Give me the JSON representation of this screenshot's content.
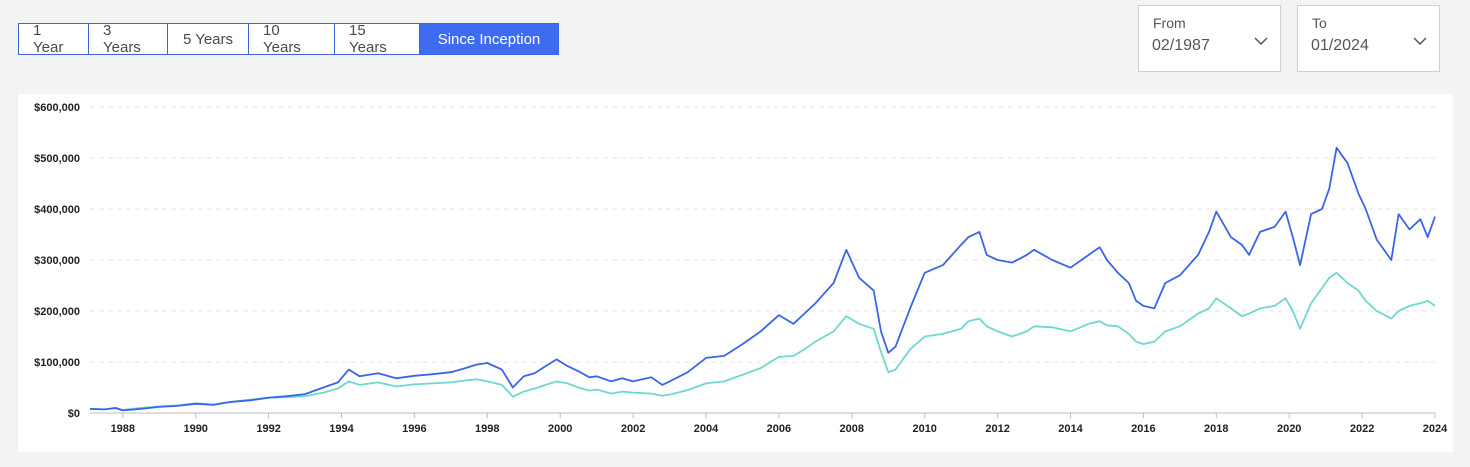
{
  "range_tabs": {
    "items": [
      "1 Year",
      "3 Years",
      "5 Years",
      "10 Years",
      "15 Years",
      "Since Inception"
    ],
    "active": "Since Inception"
  },
  "date_range": {
    "from_label": "From",
    "from_value": "02/1987",
    "to_label": "To",
    "to_value": "01/2024"
  },
  "colors": {
    "accent": "#3d6cf3",
    "series_1": "#3a66e6",
    "series_2": "#6ed8cf"
  },
  "chart_data": {
    "type": "line",
    "title": "",
    "xlabel": "",
    "ylabel": "",
    "xlim": [
      1987.1,
      2024.0
    ],
    "ylim": [
      0,
      600000
    ],
    "x_ticks": [
      1988,
      1990,
      1992,
      1994,
      1996,
      1998,
      2000,
      2002,
      2004,
      2006,
      2008,
      2010,
      2012,
      2014,
      2016,
      2018,
      2020,
      2022,
      2024
    ],
    "x_tick_labels": [
      "1988",
      "1990",
      "1992",
      "1994",
      "1996",
      "1998",
      "2000",
      "2002",
      "2004",
      "2006",
      "2008",
      "2010",
      "2012",
      "2014",
      "2016",
      "2018",
      "2020",
      "2022",
      "2024"
    ],
    "y_ticks": [
      0,
      100000,
      200000,
      300000,
      400000,
      500000,
      600000
    ],
    "y_tick_labels": [
      "$0",
      "$100,000",
      "$200,000",
      "$300,000",
      "$400,000",
      "$500,000",
      "$600,000"
    ],
    "grid": true,
    "legend": "none",
    "series": [
      {
        "x": [
          1987.1,
          1987.5,
          1987.8,
          1988.0,
          1988.5,
          1989.0,
          1989.5,
          1990.0,
          1990.5,
          1990.8,
          1991.0,
          1991.5,
          1992.0,
          1992.5,
          1993.0,
          1993.5,
          1993.9,
          1994.2,
          1994.5,
          1995.0,
          1995.5,
          1996.0,
          1996.5,
          1997.0,
          1997.4,
          1997.7,
          1998.0,
          1998.4,
          1998.7,
          1999.0,
          1999.3,
          1999.6,
          1999.9,
          2000.2,
          2000.5,
          2000.8,
          2001.0,
          2001.4,
          2001.7,
          2002.0,
          2002.5,
          2002.8,
          2003.0,
          2003.5,
          2004.0,
          2004.5,
          2005.0,
          2005.5,
          2006.0,
          2006.4,
          2006.7,
          2007.0,
          2007.5,
          2007.85,
          2008.2,
          2008.6,
          2008.8,
          2009.0,
          2009.2,
          2009.6,
          2010.0,
          2010.5,
          2011.0,
          2011.2,
          2011.5,
          2011.7,
          2012.0,
          2012.4,
          2012.8,
          2013.0,
          2013.5,
          2014.0,
          2014.5,
          2014.8,
          2015.0,
          2015.3,
          2015.6,
          2015.8,
          2016.0,
          2016.3,
          2016.6,
          2017.0,
          2017.5,
          2017.8,
          2018.0,
          2018.4,
          2018.7,
          2018.9,
          2019.2,
          2019.6,
          2019.9,
          2020.1,
          2020.3,
          2020.6,
          2020.9,
          2021.1,
          2021.3,
          2021.6,
          2021.9,
          2022.1,
          2022.4,
          2022.8,
          2023.0,
          2023.3,
          2023.6,
          2023.8,
          2024.0
        ],
        "values": [
          8000,
          7000,
          10000,
          5000,
          8000,
          12000,
          14000,
          18000,
          16000,
          20000,
          22000,
          25000,
          30000,
          33000,
          37000,
          50000,
          60000,
          85000,
          72000,
          78000,
          68000,
          73000,
          76000,
          80000,
          88000,
          95000,
          98000,
          85000,
          50000,
          72000,
          78000,
          92000,
          105000,
          92000,
          82000,
          70000,
          72000,
          62000,
          68000,
          62000,
          70000,
          55000,
          62000,
          80000,
          108000,
          112000,
          135000,
          160000,
          192000,
          175000,
          195000,
          215000,
          255000,
          320000,
          265000,
          240000,
          160000,
          118000,
          130000,
          205000,
          275000,
          290000,
          330000,
          345000,
          355000,
          310000,
          300000,
          295000,
          310000,
          320000,
          300000,
          285000,
          310000,
          325000,
          300000,
          275000,
          255000,
          220000,
          210000,
          205000,
          255000,
          270000,
          310000,
          355000,
          395000,
          345000,
          330000,
          310000,
          355000,
          365000,
          395000,
          345000,
          290000,
          390000,
          400000,
          440000,
          520000,
          490000,
          430000,
          400000,
          340000,
          300000,
          390000,
          360000,
          380000,
          345000,
          385000
        ]
      },
      {
        "x": [
          1987.1,
          1987.5,
          1987.8,
          1988.0,
          1988.5,
          1989.0,
          1989.5,
          1990.0,
          1990.5,
          1990.8,
          1991.0,
          1991.5,
          1992.0,
          1992.5,
          1993.0,
          1993.5,
          1993.9,
          1994.2,
          1994.5,
          1995.0,
          1995.5,
          1996.0,
          1996.5,
          1997.0,
          1997.4,
          1997.7,
          1998.0,
          1998.4,
          1998.7,
          1999.0,
          1999.3,
          1999.6,
          1999.9,
          2000.2,
          2000.5,
          2000.8,
          2001.0,
          2001.4,
          2001.7,
          2002.0,
          2002.5,
          2002.8,
          2003.0,
          2003.5,
          2004.0,
          2004.5,
          2005.0,
          2005.5,
          2006.0,
          2006.4,
          2006.7,
          2007.0,
          2007.5,
          2007.85,
          2008.2,
          2008.6,
          2008.8,
          2009.0,
          2009.2,
          2009.6,
          2010.0,
          2010.5,
          2011.0,
          2011.2,
          2011.5,
          2011.7,
          2012.0,
          2012.4,
          2012.8,
          2013.0,
          2013.5,
          2014.0,
          2014.5,
          2014.8,
          2015.0,
          2015.3,
          2015.6,
          2015.8,
          2016.0,
          2016.3,
          2016.6,
          2017.0,
          2017.5,
          2017.8,
          2018.0,
          2018.4,
          2018.7,
          2018.9,
          2019.2,
          2019.6,
          2019.9,
          2020.1,
          2020.3,
          2020.6,
          2020.9,
          2021.1,
          2021.3,
          2021.6,
          2021.9,
          2022.1,
          2022.4,
          2022.8,
          2023.0,
          2023.3,
          2023.6,
          2023.8,
          2024.0
        ],
        "values": [
          8000,
          7000,
          9000,
          6000,
          10000,
          13000,
          15000,
          19000,
          16000,
          20000,
          22000,
          26000,
          30000,
          31000,
          33000,
          40000,
          48000,
          62000,
          55000,
          60000,
          52000,
          56000,
          58000,
          60000,
          64000,
          66000,
          62000,
          55000,
          32000,
          42000,
          48000,
          55000,
          62000,
          58000,
          50000,
          44000,
          46000,
          38000,
          42000,
          40000,
          38000,
          34000,
          36000,
          45000,
          58000,
          62000,
          75000,
          88000,
          110000,
          112000,
          125000,
          140000,
          160000,
          190000,
          175000,
          165000,
          120000,
          80000,
          85000,
          125000,
          150000,
          155000,
          165000,
          180000,
          185000,
          170000,
          160000,
          150000,
          160000,
          170000,
          168000,
          160000,
          175000,
          180000,
          172000,
          170000,
          155000,
          140000,
          135000,
          140000,
          160000,
          170000,
          195000,
          205000,
          225000,
          205000,
          190000,
          195000,
          205000,
          210000,
          225000,
          200000,
          165000,
          215000,
          245000,
          265000,
          275000,
          255000,
          240000,
          220000,
          200000,
          185000,
          200000,
          210000,
          215000,
          220000,
          210000
        ]
      }
    ]
  }
}
